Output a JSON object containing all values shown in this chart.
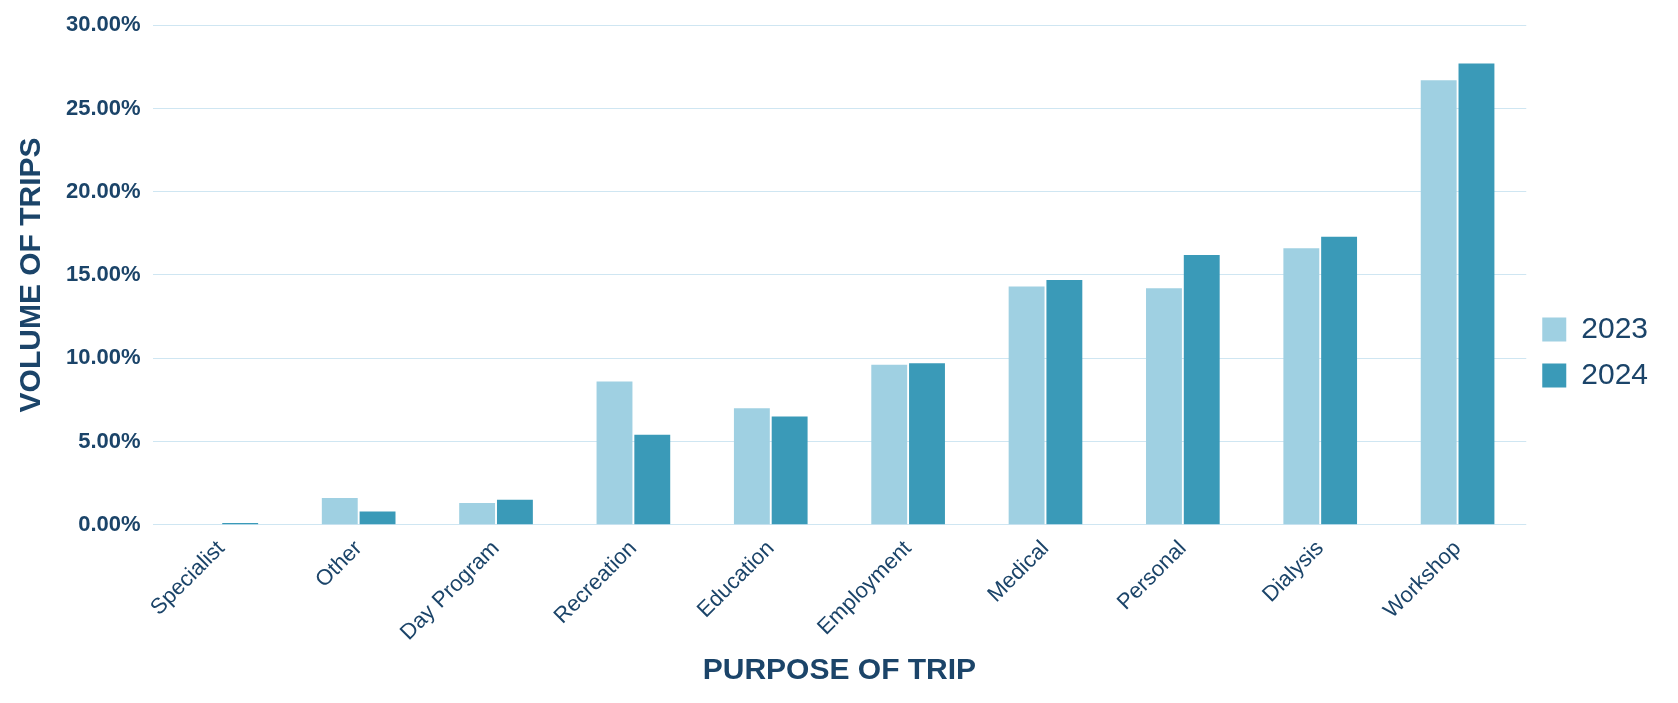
{
  "chart_data": {
    "type": "bar",
    "xlabel": "PURPOSE OF TRIP",
    "ylabel": "VOLUME OF TRIPS",
    "categories": [
      "Specialist",
      "Other",
      "Day Program",
      "Recreation",
      "Education",
      "Employment",
      "Medical",
      "Personal",
      "Dialysis",
      "Workshop"
    ],
    "series": [
      {
        "name": "2023",
        "color": "#9fd0e2",
        "values": [
          0,
          1.6,
          1.3,
          8.6,
          7.0,
          9.6,
          14.3,
          14.2,
          16.6,
          26.7
        ]
      },
      {
        "name": "2024",
        "color": "#3a9ab8",
        "values": [
          0.1,
          0.8,
          1.5,
          5.4,
          6.5,
          9.7,
          14.7,
          16.2,
          17.3,
          27.7
        ]
      }
    ],
    "ylim": [
      0,
      30
    ],
    "yticks": [
      {
        "value": 0,
        "label": "0.00%"
      },
      {
        "value": 5,
        "label": "5.00%"
      },
      {
        "value": 10,
        "label": "10.00%"
      },
      {
        "value": 15,
        "label": "15.00%"
      },
      {
        "value": 20,
        "label": "20.00%"
      },
      {
        "value": 25,
        "label": "25.00%"
      },
      {
        "value": 30,
        "label": "30.00%"
      }
    ],
    "grid": "y",
    "legend": "right"
  }
}
